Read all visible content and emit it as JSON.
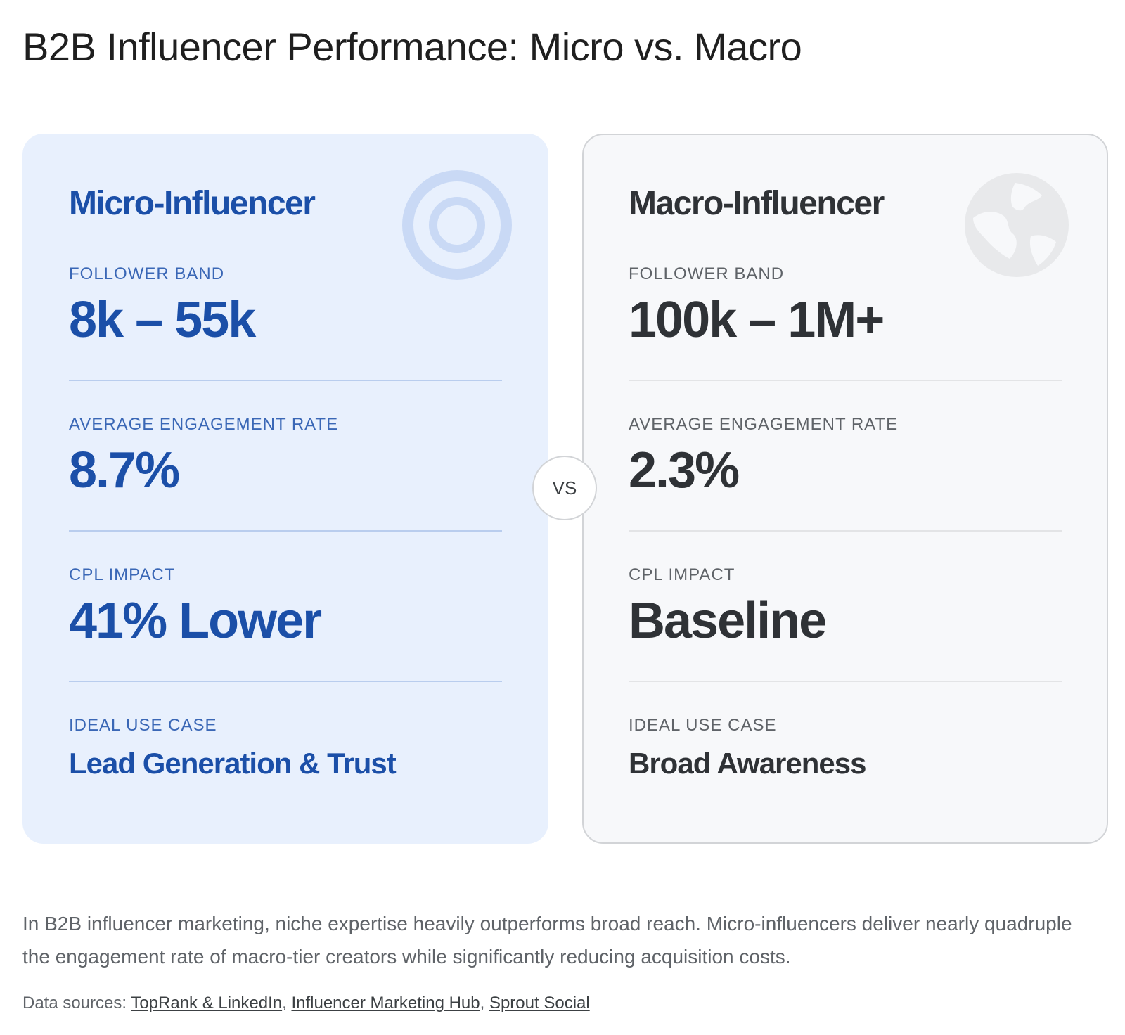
{
  "title": "B2B Influencer Performance: Micro vs. Macro",
  "micro": {
    "name": "Micro-Influencer",
    "icon": "target-icon",
    "metrics": [
      {
        "label": "FOLLOWER BAND",
        "value": "8k – 55k"
      },
      {
        "label": "AVERAGE ENGAGEMENT RATE",
        "value": "8.7%"
      },
      {
        "label": "CPL IMPACT",
        "value": "41% Lower"
      },
      {
        "label": "IDEAL USE CASE",
        "value": "Lead Generation & Trust"
      }
    ]
  },
  "macro": {
    "name": "Macro-Influencer",
    "icon": "globe-icon",
    "metrics": [
      {
        "label": "FOLLOWER BAND",
        "value": "100k – 1M+"
      },
      {
        "label": "AVERAGE ENGAGEMENT RATE",
        "value": "2.3%"
      },
      {
        "label": "CPL IMPACT",
        "value": "Baseline"
      },
      {
        "label": "IDEAL USE CASE",
        "value": "Broad Awareness"
      }
    ]
  },
  "vs_label": "VS",
  "summary": "In B2B influencer marketing, niche expertise heavily outperforms broad reach. Micro-influencers deliver nearly quadruple the engagement rate of macro-tier creators while significantly reducing acquisition costs.",
  "sources": {
    "prefix": "Data sources:",
    "links": [
      "TopRank & LinkedIn",
      "Influencer Marketing Hub",
      "Sprout Social"
    ]
  },
  "colors": {
    "micro_accent": "#1b4fa8",
    "micro_bg": "#e8f0fd",
    "macro_accent": "#2f3236",
    "macro_bg": "#f7f8fa"
  }
}
